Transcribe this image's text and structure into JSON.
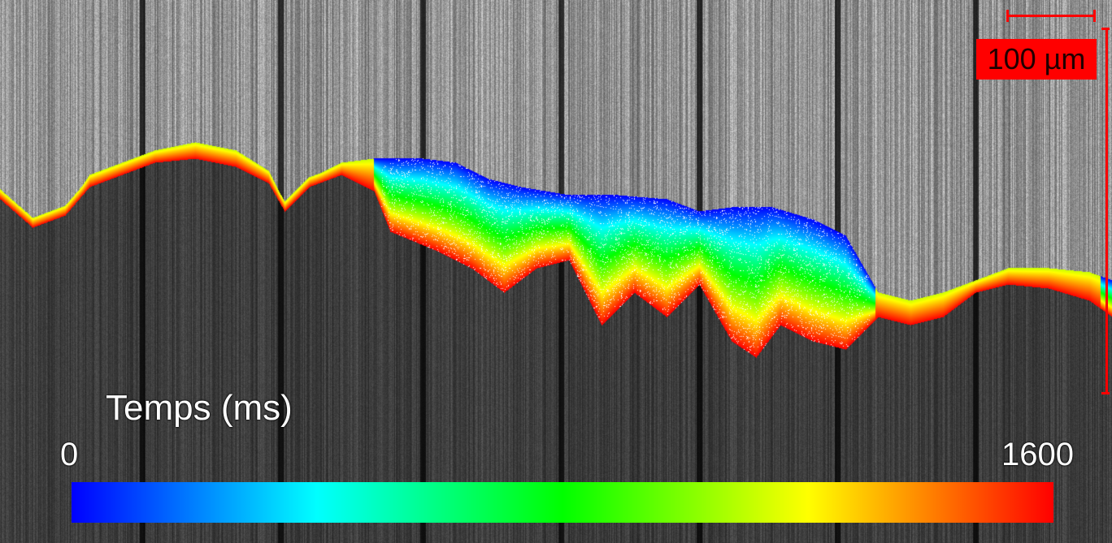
{
  "colorbar": {
    "title": "Temps (ms)",
    "min_label": "0",
    "max_label": "1600",
    "min_value": 0,
    "max_value": 1600,
    "colors": [
      "#0000ff",
      "#00ffff",
      "#00ff00",
      "#ffff00",
      "#ff0000"
    ]
  },
  "scalebar": {
    "label": "100 µm",
    "color": "#ff0000"
  }
}
